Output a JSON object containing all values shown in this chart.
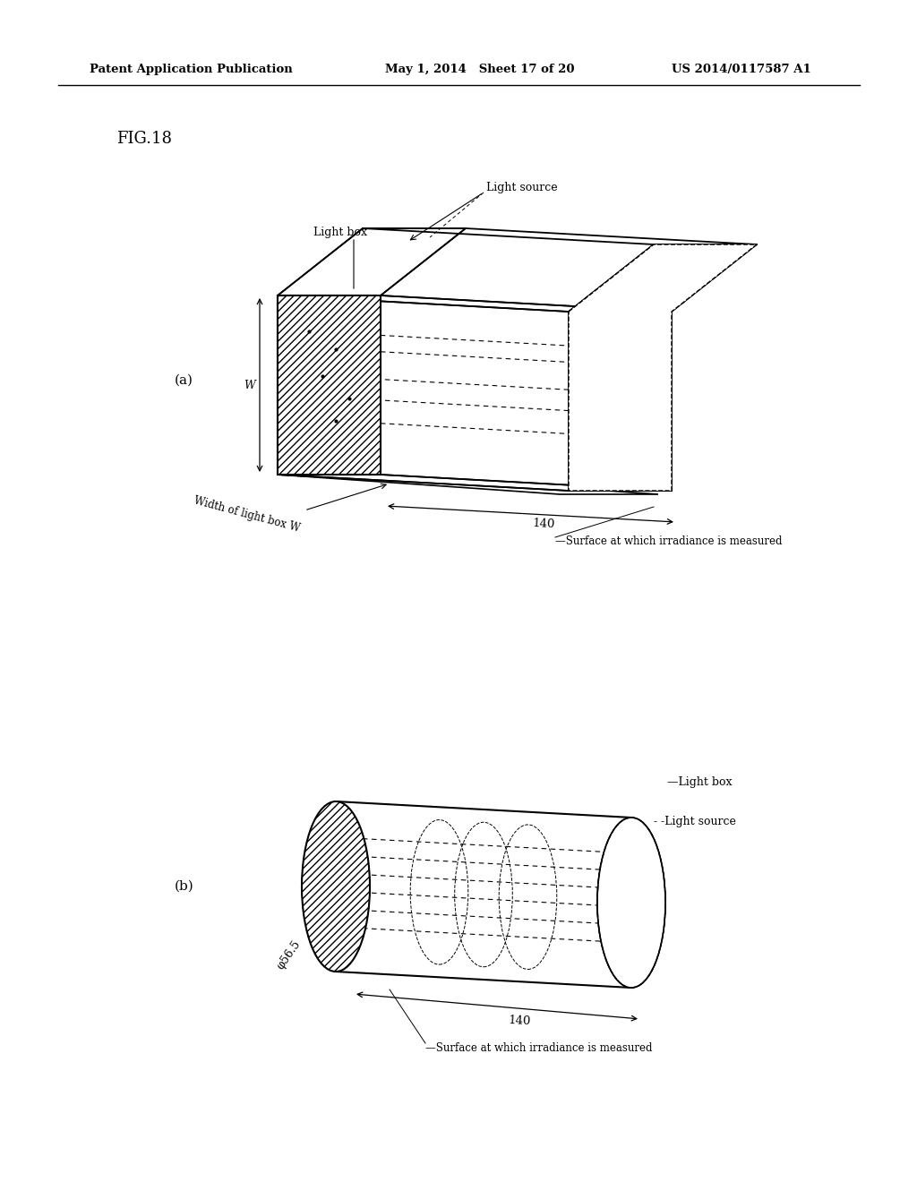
{
  "header_left": "Patent Application Publication",
  "header_mid": "May 1, 2014   Sheet 17 of 20",
  "header_right": "US 2014/0117587 A1",
  "fig_label": "FIG.18",
  "label_a": "(a)",
  "label_b": "(b)",
  "bg_color": "#ffffff",
  "line_color": "#000000",
  "hatch_color": "#000000",
  "box_length": "140",
  "box_width_label": "Width of light box W",
  "box_w_label": "W",
  "surface_label": "Surface at which irradiance is measured",
  "light_source_label": "Light source",
  "light_box_label": "Light box",
  "cyl_diameter_label": "φ56.5",
  "cyl_length_label": "140"
}
